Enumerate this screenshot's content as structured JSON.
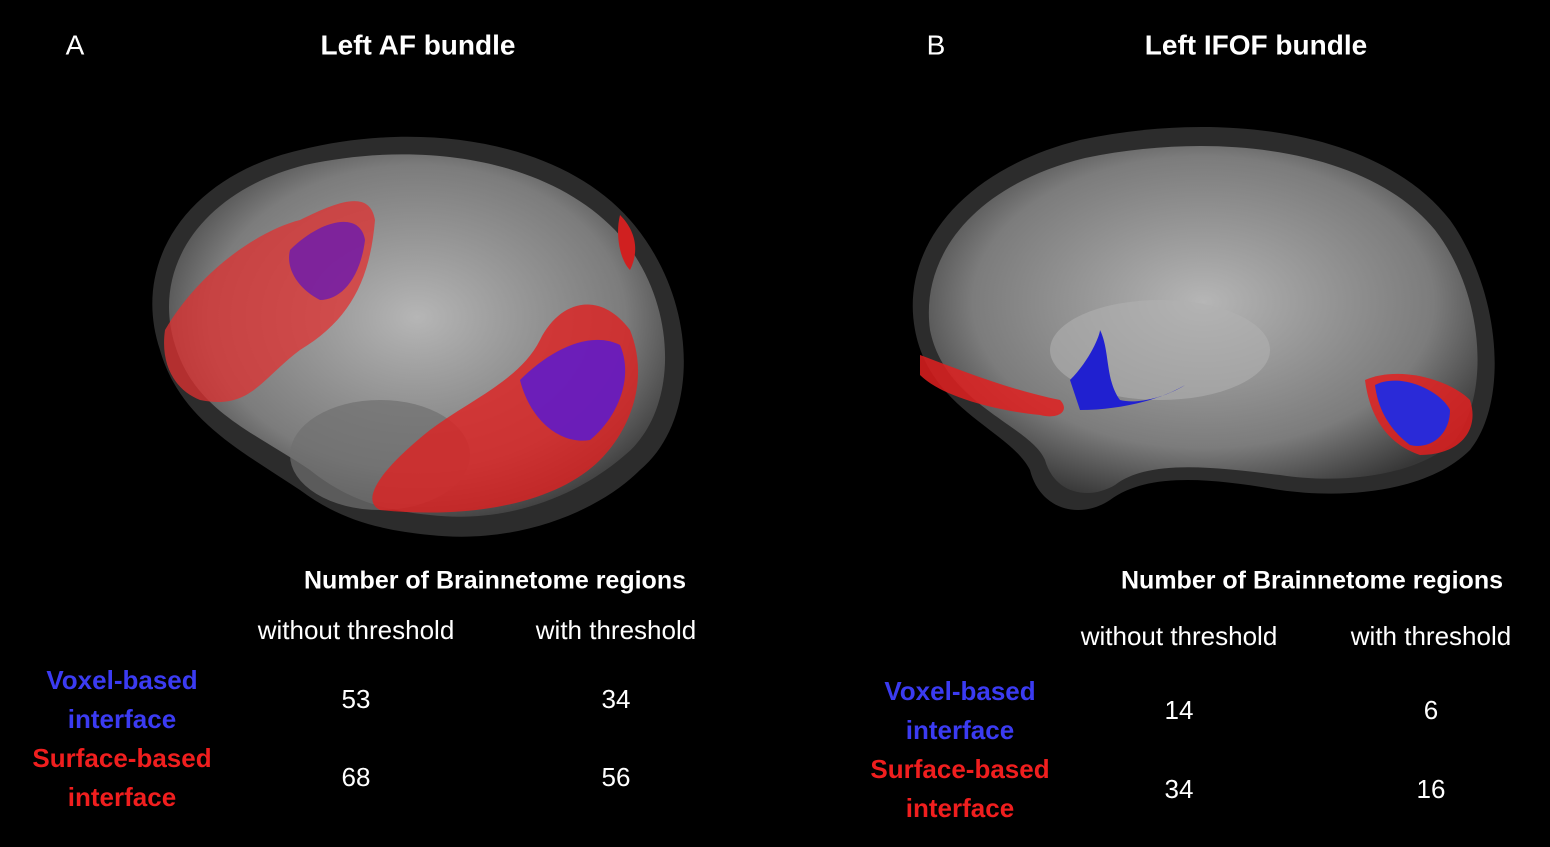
{
  "panels": [
    {
      "label": "A",
      "title": "Left AF bundle",
      "table": {
        "header": "Number of Brainnetome regions",
        "columns": [
          "without threshold",
          "with threshold"
        ],
        "rows": [
          {
            "label": [
              "Voxel-based",
              "interface"
            ],
            "color": "#3b3bf2",
            "cells": [
              "53",
              "34"
            ]
          },
          {
            "label": [
              "Surface-based",
              "interface"
            ],
            "color": "#f01e1e",
            "cells": [
              "68",
              "56"
            ]
          }
        ]
      }
    },
    {
      "label": "B",
      "title": "Left IFOF bundle",
      "table": {
        "header": "Number of Brainnetome regions",
        "columns": [
          "without threshold",
          "with threshold"
        ],
        "rows": [
          {
            "label": [
              "Voxel-based",
              "interface"
            ],
            "color": "#3b3bf2",
            "cells": [
              "14",
              "6"
            ]
          },
          {
            "label": [
              "Surface-based",
              "interface"
            ],
            "color": "#f01e1e",
            "cells": [
              "34",
              "16"
            ]
          }
        ]
      }
    }
  ]
}
